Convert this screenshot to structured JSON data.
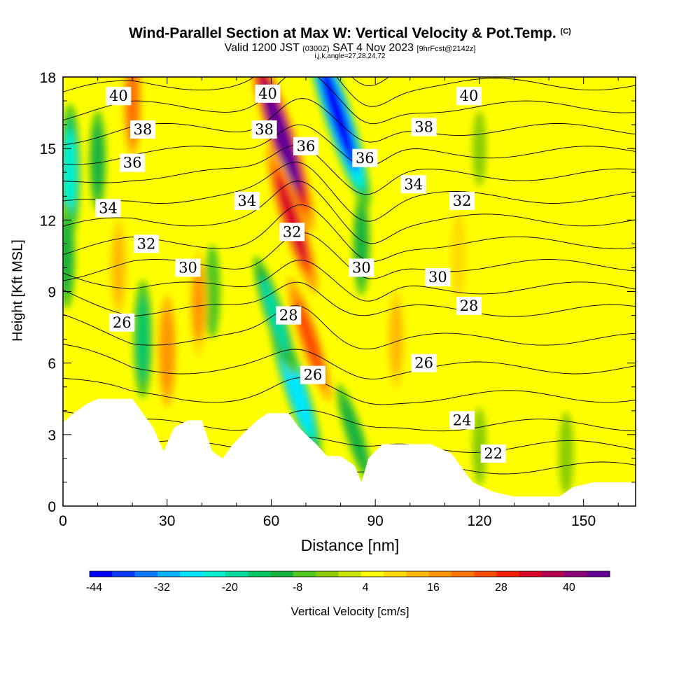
{
  "title": {
    "main": "Wind-Parallel Section at Max W: Vertical Velocity & Pot.Temp.",
    "main_mark": "(C)",
    "valid_prefix": "Valid 1200 JST",
    "valid_utc": "(0300Z)",
    "valid_date": "SAT 4 Nov 2023",
    "forecast": "[9hrFcst@2142z]",
    "indices": "i,j,k,angle=27,28,24,72"
  },
  "chart_data": {
    "type": "heatmap",
    "xlabel": "Distance [nm]",
    "ylabel": "Height [Kft MSL]",
    "xlim": [
      0,
      165
    ],
    "ylim": [
      0,
      18
    ],
    "xticks": [
      0,
      30,
      60,
      90,
      120,
      150
    ],
    "yticks": [
      0,
      3,
      6,
      9,
      12,
      15,
      18
    ],
    "colorbar": {
      "label": "Vertical Velocity [cm/s]",
      "ticks": [
        "-44",
        "-32",
        "-20",
        "-8",
        "4",
        "16",
        "28",
        "40"
      ],
      "colors": [
        "#0000ff",
        "#0a3cff",
        "#0a78ff",
        "#00b4ff",
        "#00e6ff",
        "#00f0d2",
        "#00dca0",
        "#00c864",
        "#14b43c",
        "#50c81e",
        "#8ccd00",
        "#c8e600",
        "#ffff00",
        "#ffdc00",
        "#ffb900",
        "#ff9600",
        "#ff7300",
        "#ff4b00",
        "#ff1e00",
        "#dc0028",
        "#b40050",
        "#8c0078",
        "#640096"
      ]
    },
    "velocity_features": [
      {
        "x": 63,
        "y": 15.5,
        "value": 44
      },
      {
        "x": 66,
        "y": 12.0,
        "value": 30
      },
      {
        "x": 71,
        "y": 7.0,
        "value": 22
      },
      {
        "x": 79,
        "y": 16.5,
        "value": -44
      },
      {
        "x": 67,
        "y": 5.0,
        "value": -30
      },
      {
        "x": 61,
        "y": 8.0,
        "value": -20
      },
      {
        "x": 2,
        "y": 14.0,
        "value": -24
      },
      {
        "x": 1,
        "y": 10.5,
        "value": -14
      },
      {
        "x": 10,
        "y": 14.5,
        "value": -12
      },
      {
        "x": 23,
        "y": 7.0,
        "value": -18
      },
      {
        "x": 43,
        "y": 9.0,
        "value": -10
      },
      {
        "x": 86,
        "y": 11.0,
        "value": -13
      },
      {
        "x": 84,
        "y": 3.0,
        "value": -14
      },
      {
        "x": 16,
        "y": 10.0,
        "value": 12
      },
      {
        "x": 30,
        "y": 6.5,
        "value": 16
      },
      {
        "x": 20,
        "y": 17.0,
        "value": 20
      },
      {
        "x": 39,
        "y": 8.5,
        "value": 14
      },
      {
        "x": 96,
        "y": 7.0,
        "value": 12
      },
      {
        "x": 114,
        "y": 10.5,
        "value": 8
      },
      {
        "x": 145,
        "y": 2.2,
        "value": -7
      },
      {
        "x": 120,
        "y": 2.5,
        "value": -5
      },
      {
        "x": 120,
        "y": 15.0,
        "value": -4
      }
    ],
    "theta_contours": [
      22,
      23,
      24,
      25,
      26,
      27,
      28,
      29,
      30,
      31,
      32,
      33,
      34,
      35,
      36,
      37,
      38,
      39,
      40
    ],
    "contour_labels": [
      {
        "text": "40",
        "x": 16,
        "y": 17.2
      },
      {
        "text": "40",
        "x": 59,
        "y": 17.3
      },
      {
        "text": "40",
        "x": 117,
        "y": 17.2
      },
      {
        "text": "38",
        "x": 23,
        "y": 15.8
      },
      {
        "text": "38",
        "x": 58,
        "y": 15.8
      },
      {
        "text": "38",
        "x": 104,
        "y": 15.9
      },
      {
        "text": "36",
        "x": 70,
        "y": 15.1
      },
      {
        "text": "36",
        "x": 20,
        "y": 14.4
      },
      {
        "text": "36",
        "x": 87,
        "y": 14.6
      },
      {
        "text": "34",
        "x": 13,
        "y": 12.5
      },
      {
        "text": "34",
        "x": 53,
        "y": 12.8
      },
      {
        "text": "34",
        "x": 101,
        "y": 13.5
      },
      {
        "text": "32",
        "x": 24,
        "y": 11.0
      },
      {
        "text": "32",
        "x": 66,
        "y": 11.5
      },
      {
        "text": "32",
        "x": 115,
        "y": 12.8
      },
      {
        "text": "30",
        "x": 36,
        "y": 10.0
      },
      {
        "text": "30",
        "x": 86,
        "y": 10.0
      },
      {
        "text": "30",
        "x": 108,
        "y": 9.6
      },
      {
        "text": "28",
        "x": 65,
        "y": 8.0
      },
      {
        "text": "28",
        "x": 117,
        "y": 8.4
      },
      {
        "text": "26",
        "x": 17,
        "y": 7.7
      },
      {
        "text": "26",
        "x": 72,
        "y": 5.5
      },
      {
        "text": "26",
        "x": 104,
        "y": 6.0
      },
      {
        "text": "24",
        "x": 115,
        "y": 3.6
      },
      {
        "text": "22",
        "x": 124,
        "y": 2.2
      }
    ],
    "terrain": [
      [
        0,
        3.5
      ],
      [
        3,
        3.9
      ],
      [
        7,
        4.3
      ],
      [
        10,
        4.5
      ],
      [
        20,
        4.5
      ],
      [
        23,
        3.9
      ],
      [
        26,
        3.3
      ],
      [
        29,
        2.3
      ],
      [
        32,
        3.3
      ],
      [
        36,
        3.6
      ],
      [
        40,
        3.6
      ],
      [
        43,
        2.3
      ],
      [
        46,
        2.0
      ],
      [
        49,
        2.6
      ],
      [
        53,
        3.2
      ],
      [
        56,
        3.6
      ],
      [
        59,
        3.9
      ],
      [
        65,
        3.9
      ],
      [
        68,
        3.3
      ],
      [
        70,
        3.0
      ],
      [
        73,
        2.6
      ],
      [
        76,
        2.1
      ],
      [
        80,
        2.1
      ],
      [
        84,
        1.7
      ],
      [
        86,
        1.0
      ],
      [
        88,
        2.0
      ],
      [
        92,
        2.6
      ],
      [
        106,
        2.6
      ],
      [
        112,
        2.2
      ],
      [
        115,
        1.6
      ],
      [
        118,
        1.0
      ],
      [
        124,
        0.6
      ],
      [
        130,
        0.4
      ],
      [
        143,
        0.4
      ],
      [
        147,
        0.8
      ],
      [
        153,
        1.0
      ],
      [
        165,
        1.0
      ]
    ]
  }
}
